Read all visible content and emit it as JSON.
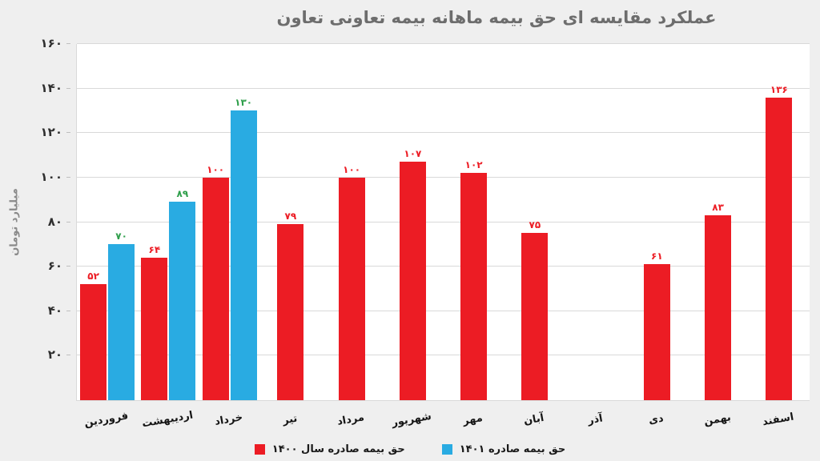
{
  "title": "عملکرد مقایسه ای حق بیمه ماهانه بیمه تعاونی تعاون",
  "y_axis_title": "میلیارد تومان",
  "legend": {
    "series_1400_label": "حق بیمه صادره سال ۱۴۰۰",
    "series_1401_label": "حق بیمه صادره ۱۴۰۱"
  },
  "colors": {
    "background": "#efefef",
    "plot_background": "#ffffff",
    "gridline": "#d9d9d9",
    "red_series": "#ec1c24",
    "blue_series": "#29abe2",
    "red_label": "#ec1c24",
    "green_label": "#2e9e4a",
    "title_text": "#6d6d6d",
    "axis_text": "#2f2f2f"
  },
  "chart_data": {
    "type": "bar",
    "title": "عملکرد مقایسه ای حق بیمه ماهانه بیمه تعاونی تعاون",
    "xlabel": "",
    "ylabel": "میلیارد تومان",
    "ylim": [
      0,
      160
    ],
    "grid": true,
    "legend_position": "bottom",
    "categories": [
      "فروردین",
      "اردیبهشت",
      "خرداد",
      "تیر",
      "مرداد",
      "شهریور",
      "مهر",
      "آبان",
      "آذر",
      "دی",
      "بهمن",
      "اسفند"
    ],
    "series": [
      {
        "name": "حق بیمه صادره سال ۱۴۰۰",
        "color": "#ec1c24",
        "label_color": "#ec1c24",
        "values": [
          52,
          64,
          100,
          79,
          100,
          107,
          102,
          75,
          null,
          61,
          83,
          136
        ],
        "labels": [
          "۵۲",
          "۶۴",
          "۱۰۰",
          "۷۹",
          "۱۰۰",
          "۱۰۷",
          "۱۰۲",
          "۷۵",
          "",
          "۶۱",
          "۸۳",
          "۱۳۶"
        ]
      },
      {
        "name": "حق بیمه صادره ۱۴۰۱",
        "color": "#29abe2",
        "label_color": "#2e9e4a",
        "values": [
          70,
          89,
          130,
          null,
          null,
          null,
          null,
          null,
          null,
          null,
          null,
          null
        ],
        "labels": [
          "۷۰",
          "۸۹",
          "۱۳۰",
          "",
          "",
          "",
          "",
          "",
          "",
          "",
          "",
          ""
        ]
      }
    ],
    "y_ticks": [
      {
        "value": 20,
        "label": "۲۰"
      },
      {
        "value": 40,
        "label": "۴۰"
      },
      {
        "value": 60,
        "label": "۶۰"
      },
      {
        "value": 80,
        "label": "۸۰"
      },
      {
        "value": 100,
        "label": "۱۰۰"
      },
      {
        "value": 120,
        "label": "۱۲۰"
      },
      {
        "value": 140,
        "label": "۱۴۰"
      },
      {
        "value": 160,
        "label": "۱۶۰"
      }
    ]
  }
}
